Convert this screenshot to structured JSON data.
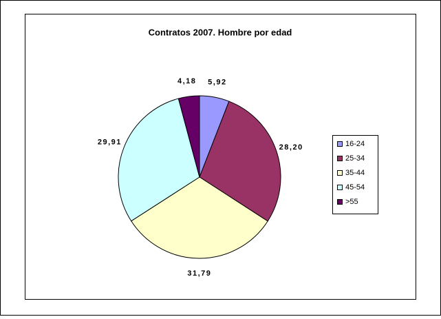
{
  "chart_data": {
    "type": "pie",
    "title": "Contratos 2007. Hombre por edad",
    "categories": [
      "16-24",
      "25-34",
      "35-44",
      "45-54",
      ">55"
    ],
    "values": [
      5.92,
      28.2,
      31.79,
      29.91,
      4.18
    ],
    "value_labels": [
      "5,92",
      "28,20",
      "31,79",
      "29,91",
      "4,18"
    ],
    "colors": [
      "#9999ff",
      "#993366",
      "#ffffcc",
      "#ccffff",
      "#660066"
    ],
    "legend": "right"
  }
}
